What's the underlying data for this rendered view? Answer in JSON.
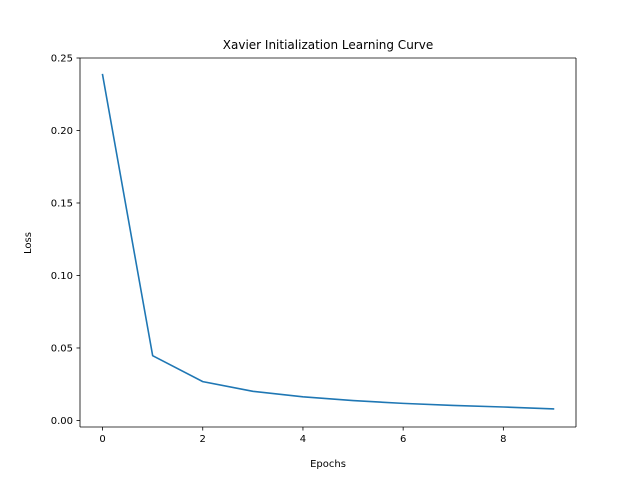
{
  "chart_data": {
    "type": "line",
    "title": "Xavier Initialization Learning Curve",
    "xlabel": "Epochs",
    "ylabel": "Loss",
    "xlim": [
      -0.45,
      9.45
    ],
    "ylim": [
      -0.0045,
      0.25
    ],
    "xticks": [
      0,
      2,
      4,
      6,
      8
    ],
    "xtick_labels": [
      "0",
      "2",
      "4",
      "6",
      "8"
    ],
    "yticks": [
      0.0,
      0.05,
      0.1,
      0.15,
      0.2,
      0.25
    ],
    "ytick_labels": [
      "0.00",
      "0.05",
      "0.10",
      "0.15",
      "0.20",
      "0.25"
    ],
    "grid": false,
    "legend": "none",
    "series": [
      {
        "color": "#1f77b4",
        "x": [
          0,
          1,
          2,
          3,
          4,
          5,
          6,
          7,
          8,
          9
        ],
        "values": [
          0.2385,
          0.0447,
          0.0268,
          0.0201,
          0.0163,
          0.0137,
          0.0118,
          0.0104,
          0.0093,
          0.008
        ]
      }
    ]
  }
}
